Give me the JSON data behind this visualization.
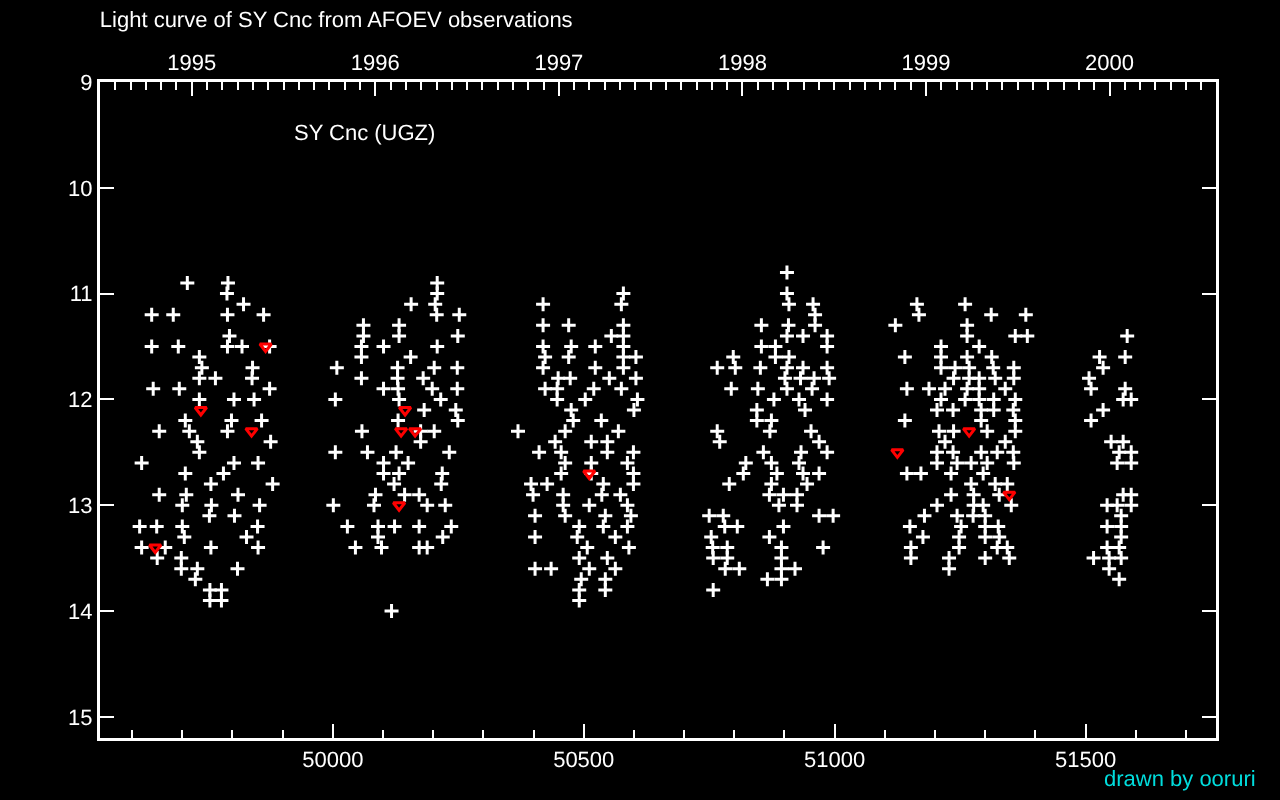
{
  "chart_data": {
    "type": "scatter",
    "title": "Light curve of SY Cnc from AFOEV observations",
    "annotations": [
      "SY Cnc (UGZ)",
      "drawn by ooruri"
    ],
    "xlim": [
      49536,
      51760
    ],
    "xticks": [
      50000,
      50500,
      51000,
      51500
    ],
    "x2lim": [
      1994.5,
      2000.58
    ],
    "x2ticks": [
      1995,
      1996,
      1997,
      1998,
      1999,
      2000
    ],
    "ylim": [
      15.2,
      9
    ],
    "yticks": [
      9,
      10,
      11,
      12,
      13,
      14,
      15
    ],
    "marker": "cross",
    "series": [
      {
        "color": "#ffffff",
        "x": [
          49710,
          49791,
          49789,
          49639,
          49682,
          49790,
          49822,
          49862,
          49794,
          49639,
          49692,
          49790,
          49819,
          49874,
          49734,
          49739,
          49840,
          49734,
          49766,
          49839,
          49642,
          49694,
          49874,
          49734,
          49803,
          49843,
          49706,
          49798,
          49858,
          49654,
          49714,
          49790,
          49876,
          49730,
          49734,
          49619,
          49803,
          49851,
          49706,
          49782,
          49757,
          49880,
          49654,
          49708,
          49811,
          49700,
          49758,
          49854,
          49754,
          49804,
          49615,
          49649,
          49700,
          49850,
          49704,
          49828,
          49619,
          49666,
          49757,
          49851,
          49650,
          49698,
          49698,
          49730,
          49810,
          49726,
          49755,
          49778,
          49755,
          49778
        ],
        "values": [
          10.9,
          10.9,
          11.0,
          11.2,
          11.2,
          11.2,
          11.1,
          11.2,
          11.4,
          11.5,
          11.5,
          11.5,
          11.5,
          11.5,
          11.6,
          11.7,
          11.7,
          11.8,
          11.8,
          11.8,
          11.9,
          11.9,
          11.9,
          12.0,
          12.0,
          12.0,
          12.2,
          12.2,
          12.2,
          12.3,
          12.3,
          12.3,
          12.4,
          12.4,
          12.5,
          12.6,
          12.6,
          12.6,
          12.7,
          12.7,
          12.8,
          12.8,
          12.9,
          12.9,
          12.9,
          13.0,
          13.0,
          13.0,
          13.1,
          13.1,
          13.2,
          13.2,
          13.2,
          13.2,
          13.3,
          13.3,
          13.4,
          13.4,
          13.4,
          13.4,
          13.5,
          13.5,
          13.6,
          13.6,
          13.6,
          13.7,
          13.8,
          13.8,
          13.9,
          13.9
        ]
      },
      {
        "color": "#ffffff",
        "x": [
          50208,
          50208,
          50156,
          50204,
          50061,
          50132,
          50207,
          50252,
          50061,
          50132,
          50249,
          50057,
          50101,
          50208,
          50057,
          50155,
          50008,
          50129,
          50202,
          50248,
          50057,
          50129,
          50180,
          50101,
          50130,
          50198,
          50248,
          50005,
          50132,
          50215,
          50245,
          50182,
          50130,
          50249,
          50058,
          50175,
          50202,
          50175,
          50005,
          50069,
          50126,
          50232,
          50101,
          50150,
          50101,
          50132,
          50218,
          50122,
          50216,
          50085,
          50143,
          50172,
          50001,
          50082,
          50188,
          50224,
          50029,
          50090,
          50123,
          50172,
          50236,
          50090,
          50219,
          50045,
          50097,
          50172,
          50188,
          50117
        ],
        "values": [
          10.9,
          11.0,
          11.1,
          11.1,
          11.3,
          11.3,
          11.2,
          11.2,
          11.4,
          11.4,
          11.4,
          11.5,
          11.5,
          11.5,
          11.6,
          11.6,
          11.7,
          11.7,
          11.7,
          11.7,
          11.8,
          11.8,
          11.8,
          11.9,
          11.9,
          11.9,
          11.9,
          12.0,
          12.0,
          12.0,
          12.1,
          12.1,
          12.2,
          12.2,
          12.3,
          12.3,
          12.3,
          12.4,
          12.5,
          12.5,
          12.5,
          12.5,
          12.6,
          12.6,
          12.7,
          12.7,
          12.7,
          12.8,
          12.8,
          12.9,
          12.9,
          12.9,
          13.0,
          13.0,
          13.0,
          13.0,
          13.2,
          13.2,
          13.2,
          13.2,
          13.2,
          13.3,
          13.3,
          13.4,
          13.4,
          13.4,
          13.4,
          14.0
        ]
      },
      {
        "color": "#ffffff",
        "x": [
          50419,
          50579,
          50575,
          50419,
          50470,
          50579,
          50555,
          50579,
          50419,
          50475,
          50523,
          50579,
          50423,
          50470,
          50579,
          50604,
          50419,
          50579,
          50449,
          50473,
          50523,
          50551,
          50604,
          50423,
          50447,
          50520,
          50575,
          50447,
          50503,
          50607,
          50475,
          50600,
          50479,
          50535,
          50369,
          50463,
          50569,
          50443,
          50515,
          50547,
          50411,
          50455,
          50547,
          50599,
          50463,
          50515,
          50587,
          50455,
          50515,
          50599,
          50395,
          50427,
          50539,
          50599,
          50399,
          50459,
          50536,
          50573,
          50459,
          50511,
          50587,
          50403,
          50463,
          50543,
          50594,
          50491,
          50539,
          50587,
          50403,
          50487,
          50563,
          50507,
          50590,
          50491,
          50547,
          50403,
          50435,
          50511,
          50563,
          50495,
          50543,
          50491,
          50543,
          50491
        ],
        "values": [
          11.1,
          11.0,
          11.1,
          11.3,
          11.3,
          11.3,
          11.4,
          11.4,
          11.5,
          11.5,
          11.5,
          11.5,
          11.6,
          11.6,
          11.6,
          11.6,
          11.7,
          11.7,
          11.8,
          11.8,
          11.7,
          11.8,
          11.8,
          11.9,
          11.9,
          11.9,
          11.9,
          12.0,
          12.0,
          12.0,
          12.1,
          12.1,
          12.2,
          12.2,
          12.3,
          12.3,
          12.3,
          12.4,
          12.4,
          12.4,
          12.5,
          12.5,
          12.5,
          12.5,
          12.6,
          12.6,
          12.6,
          12.7,
          12.7,
          12.7,
          12.8,
          12.8,
          12.8,
          12.8,
          12.9,
          12.9,
          12.9,
          12.9,
          13.0,
          13.0,
          13.0,
          13.1,
          13.1,
          13.1,
          13.1,
          13.2,
          13.2,
          13.2,
          13.3,
          13.3,
          13.3,
          13.4,
          13.4,
          13.5,
          13.5,
          13.6,
          13.6,
          13.6,
          13.6,
          13.7,
          13.7,
          13.8,
          13.8,
          13.9
        ]
      },
      {
        "color": "#ffffff",
        "x": [
          50905,
          50905,
          50909,
          50957,
          50961,
          50854,
          50908,
          50961,
          50905,
          50937,
          50985,
          50854,
          50882,
          50985,
          50798,
          50882,
          50909,
          50766,
          50802,
          50852,
          50905,
          50937,
          50985,
          50901,
          50932,
          50959,
          50989,
          50794,
          50847,
          50905,
          50955,
          50879,
          50929,
          50985,
          50845,
          50941,
          50845,
          50874,
          50766,
          50871,
          50953,
          50771,
          50969,
          50858,
          50933,
          50985,
          50823,
          50874,
          50929,
          50818,
          50885,
          50937,
          50969,
          50790,
          50874,
          50945,
          50870,
          50898,
          50925,
          50889,
          50925,
          50750,
          50778,
          50969,
          50997,
          50781,
          50806,
          50898,
          50754,
          50870,
          50977,
          50757,
          50786,
          50894,
          50758,
          50786,
          50894,
          50782,
          50810,
          50894,
          50921,
          50866,
          50894,
          50758
        ],
        "values": [
          10.8,
          11.0,
          11.1,
          11.1,
          11.2,
          11.3,
          11.3,
          11.3,
          11.4,
          11.4,
          11.4,
          11.5,
          11.5,
          11.5,
          11.6,
          11.6,
          11.6,
          11.7,
          11.7,
          11.7,
          11.7,
          11.7,
          11.7,
          11.8,
          11.8,
          11.8,
          11.8,
          11.9,
          11.9,
          11.9,
          11.9,
          12.0,
          12.0,
          12.0,
          12.1,
          12.1,
          12.2,
          12.2,
          12.3,
          12.3,
          12.3,
          12.4,
          12.4,
          12.5,
          12.5,
          12.5,
          12.6,
          12.6,
          12.6,
          12.7,
          12.7,
          12.7,
          12.7,
          12.8,
          12.8,
          12.8,
          12.9,
          12.9,
          12.9,
          13.0,
          13.0,
          13.1,
          13.1,
          13.1,
          13.1,
          13.2,
          13.2,
          13.2,
          13.3,
          13.3,
          13.4,
          13.4,
          13.4,
          13.4,
          13.5,
          13.5,
          13.5,
          13.6,
          13.6,
          13.6,
          13.6,
          13.7,
          13.7,
          13.8
        ]
      },
      {
        "color": "#ffffff",
        "x": [
          51164,
          51260,
          51168,
          51312,
          51381,
          51121,
          51264,
          51264,
          51360,
          51384,
          51212,
          51288,
          51140,
          51212,
          51264,
          51313,
          51212,
          51240,
          51268,
          51316,
          51357,
          51237,
          51268,
          51288,
          51320,
          51357,
          51144,
          51188,
          51220,
          51264,
          51288,
          51340,
          51212,
          51260,
          51288,
          51317,
          51360,
          51204,
          51236,
          51292,
          51317,
          51356,
          51140,
          51292,
          51360,
          51208,
          51237,
          51304,
          51360,
          51220,
          51340,
          51204,
          51236,
          51292,
          51324,
          51356,
          51204,
          51244,
          51272,
          51304,
          51357,
          51144,
          51172,
          51232,
          51296,
          51272,
          51320,
          51344,
          51232,
          51277,
          51328,
          51204,
          51277,
          51296,
          51352,
          51179,
          51244,
          51276,
          51300,
          51150,
          51252,
          51300,
          51326,
          51176,
          51248,
          51300,
          51328,
          51152,
          51248,
          51324,
          51344,
          51152,
          51228,
          51300,
          51348,
          51228
        ],
        "values": [
          11.1,
          11.1,
          11.2,
          11.2,
          11.2,
          11.3,
          11.3,
          11.4,
          11.4,
          11.4,
          11.5,
          11.5,
          11.6,
          11.6,
          11.6,
          11.6,
          11.7,
          11.7,
          11.7,
          11.7,
          11.7,
          11.8,
          11.8,
          11.8,
          11.8,
          11.8,
          11.9,
          11.9,
          11.9,
          11.9,
          11.9,
          11.9,
          12.0,
          12.0,
          12.0,
          12.0,
          12.0,
          12.1,
          12.1,
          12.1,
          12.1,
          12.1,
          12.2,
          12.2,
          12.2,
          12.3,
          12.3,
          12.3,
          12.3,
          12.4,
          12.4,
          12.5,
          12.5,
          12.5,
          12.5,
          12.5,
          12.6,
          12.6,
          12.6,
          12.6,
          12.6,
          12.7,
          12.7,
          12.7,
          12.7,
          12.8,
          12.8,
          12.8,
          12.9,
          12.9,
          12.9,
          13.0,
          13.0,
          13.0,
          13.0,
          13.1,
          13.1,
          13.1,
          13.1,
          13.2,
          13.2,
          13.2,
          13.2,
          13.3,
          13.3,
          13.3,
          13.3,
          13.4,
          13.4,
          13.4,
          13.4,
          13.5,
          13.5,
          13.5,
          13.5,
          13.6
        ]
      },
      {
        "color": "#ffffff",
        "x": [
          51583,
          51528,
          51579,
          51535,
          51507,
          51511,
          51579,
          51575,
          51591,
          51535,
          51511,
          51551,
          51575,
          51567,
          51591,
          51563,
          51591,
          51575,
          51591,
          51543,
          51563,
          51591,
          51571,
          51543,
          51571,
          51571,
          51543,
          51567,
          51516,
          51547,
          51571,
          51547,
          51567
        ],
        "values": [
          11.4,
          11.6,
          11.6,
          11.7,
          11.8,
          11.9,
          11.9,
          12.0,
          12.0,
          12.1,
          12.2,
          12.4,
          12.4,
          12.5,
          12.5,
          12.6,
          12.6,
          12.9,
          12.9,
          13.0,
          13.0,
          13.0,
          13.1,
          13.2,
          13.2,
          13.3,
          13.4,
          13.4,
          13.5,
          13.5,
          13.5,
          13.6,
          13.7
        ]
      },
      {
        "color": "#ff0000",
        "marker": "triangle",
        "x": [
          49866,
          49737,
          49838,
          49646,
          50144,
          50136,
          50164,
          50132,
          50511,
          51125,
          51268,
          51348
        ],
        "values": [
          11.5,
          12.1,
          12.3,
          13.4,
          12.1,
          12.3,
          12.3,
          13.0,
          12.7,
          12.5,
          12.3,
          12.9
        ]
      }
    ]
  }
}
